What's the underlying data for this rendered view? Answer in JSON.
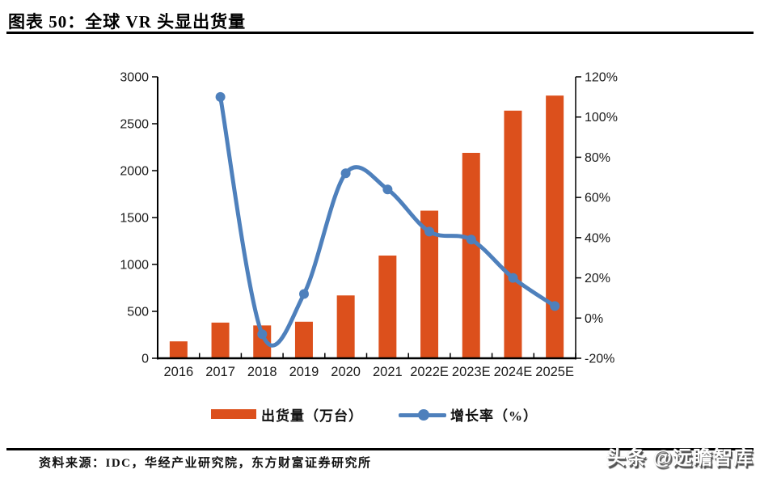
{
  "header": {
    "title": "图表 50：全球 VR 头显出货量"
  },
  "chart_data": {
    "type": "bar",
    "subtype": "bar-line-combo",
    "categories": [
      "2016",
      "2017",
      "2018",
      "2019",
      "2020",
      "2021",
      "2022E",
      "2023E",
      "2024E",
      "2025E"
    ],
    "series": [
      {
        "name": "出货量（万台）",
        "type": "bar",
        "axis": "left",
        "color": "#DC501C",
        "values": [
          180,
          380,
          350,
          390,
          670,
          1095,
          1573,
          2190,
          2640,
          2800
        ]
      },
      {
        "name": "增长率（%）",
        "type": "line",
        "axis": "right",
        "color": "#4E80BC",
        "values": [
          null,
          110,
          -8,
          12,
          72,
          64,
          43,
          39,
          20,
          6
        ]
      }
    ],
    "left_axis": {
      "min": 0,
      "max": 3000,
      "step": 500,
      "tick_labels": [
        "0",
        "500",
        "1000",
        "1500",
        "2000",
        "2500",
        "3000"
      ]
    },
    "right_axis": {
      "min": -20,
      "max": 120,
      "step": 20,
      "tick_labels": [
        "-20%",
        "0%",
        "20%",
        "40%",
        "60%",
        "80%",
        "100%",
        "120%"
      ]
    },
    "grid": false,
    "legend_position": "bottom",
    "line_smooth": true
  },
  "footer": {
    "source": "资料来源：IDC，华经产业研究院，东方财富证券研究所"
  },
  "watermark": {
    "text": "头条 @远瞻智库"
  }
}
